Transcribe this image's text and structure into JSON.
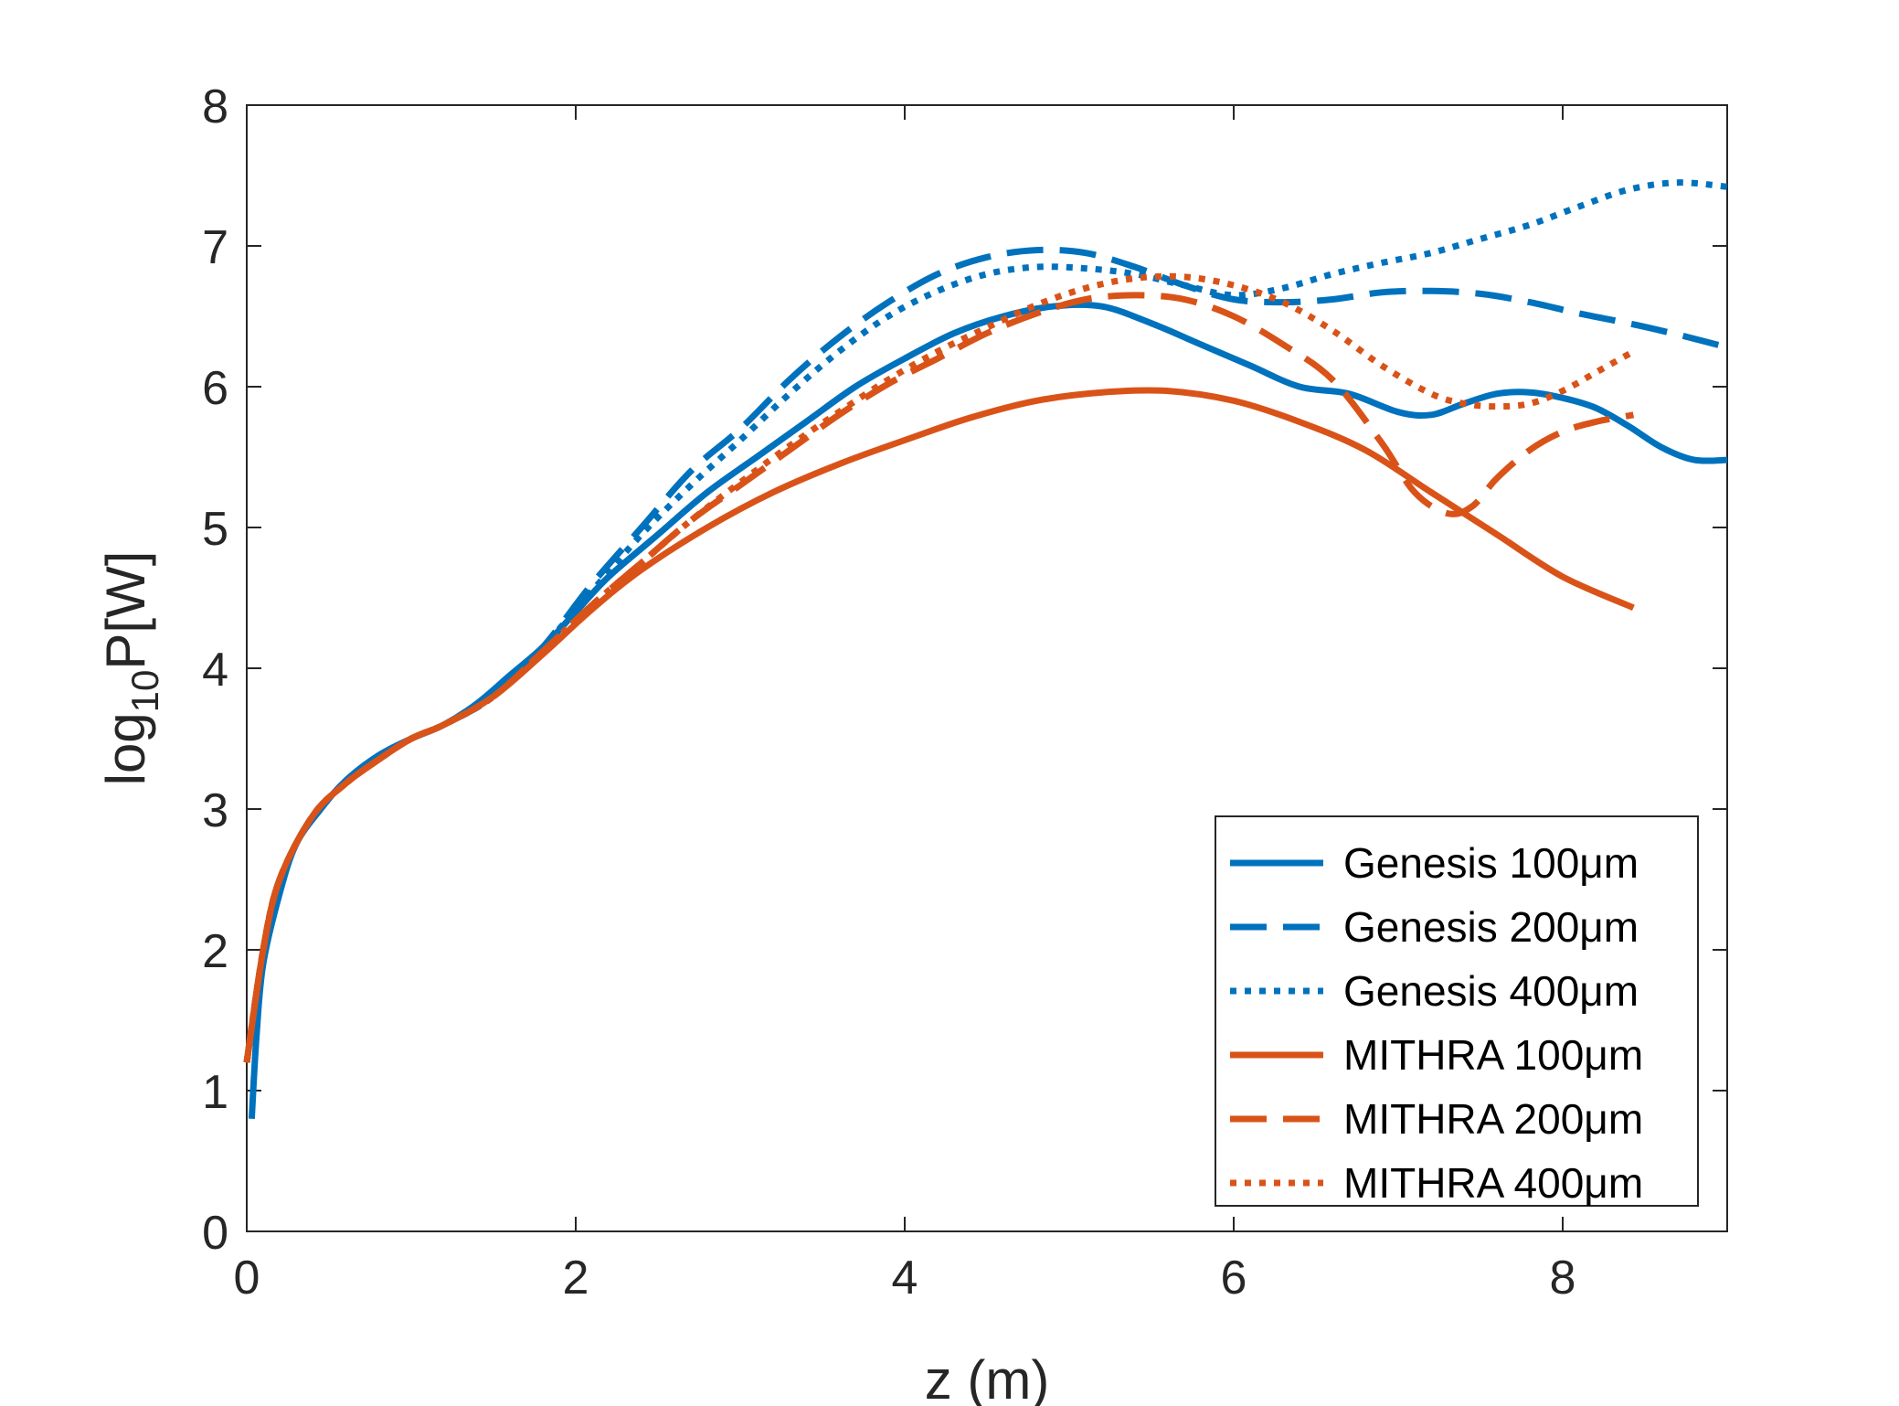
{
  "chart_data": {
    "type": "line",
    "title": "",
    "xlabel": "z (m)",
    "ylabel_main": "log",
    "ylabel_sub": "10",
    "ylabel_rest": "P[W]",
    "xlim": [
      0,
      9
    ],
    "ylim": [
      0,
      8
    ],
    "xticks": [
      0,
      2,
      4,
      6,
      8
    ],
    "yticks": [
      0,
      1,
      2,
      3,
      4,
      5,
      6,
      7,
      8
    ],
    "grid": false,
    "legend_position": "bottom-right",
    "series": [
      {
        "name": "Genesis 100μm",
        "color": "#0072BD",
        "style": "solid",
        "x": [
          0.03,
          0.06,
          0.1,
          0.2,
          0.3,
          0.45,
          0.6,
          0.8,
          1.0,
          1.2,
          1.4,
          1.6,
          1.8,
          2.0,
          2.2,
          2.5,
          2.8,
          3.1,
          3.4,
          3.7,
          4.0,
          4.3,
          4.6,
          4.9,
          5.2,
          5.5,
          5.8,
          6.1,
          6.4,
          6.7,
          7.0,
          7.2,
          7.4,
          7.6,
          7.8,
          8.0,
          8.2,
          8.4,
          8.6,
          8.8,
          9.0
        ],
        "y": [
          0.8,
          1.4,
          1.9,
          2.4,
          2.75,
          3.0,
          3.2,
          3.38,
          3.5,
          3.6,
          3.75,
          3.95,
          4.15,
          4.4,
          4.65,
          4.95,
          5.25,
          5.5,
          5.75,
          6.0,
          6.2,
          6.38,
          6.5,
          6.57,
          6.57,
          6.45,
          6.3,
          6.15,
          6.0,
          5.95,
          5.82,
          5.8,
          5.88,
          5.95,
          5.96,
          5.92,
          5.85,
          5.72,
          5.57,
          5.48,
          5.48
        ]
      },
      {
        "name": "Genesis 200μm",
        "color": "#0072BD",
        "style": "dashed",
        "x": [
          0.0,
          0.1,
          0.2,
          0.4,
          0.6,
          0.8,
          1.0,
          1.2,
          1.5,
          1.8,
          2.1,
          2.4,
          2.7,
          3.0,
          3.3,
          3.6,
          3.9,
          4.2,
          4.5,
          4.8,
          5.1,
          5.4,
          5.7,
          6.0,
          6.3,
          6.6,
          6.9,
          7.2,
          7.5,
          7.8,
          8.1,
          8.4,
          8.7,
          9.0
        ],
        "y": [
          1.2,
          2.0,
          2.5,
          2.95,
          3.18,
          3.35,
          3.5,
          3.6,
          3.8,
          4.15,
          4.6,
          5.0,
          5.4,
          5.7,
          6.05,
          6.35,
          6.6,
          6.8,
          6.92,
          6.97,
          6.95,
          6.85,
          6.72,
          6.62,
          6.6,
          6.62,
          6.67,
          6.68,
          6.66,
          6.6,
          6.52,
          6.45,
          6.37,
          6.28
        ]
      },
      {
        "name": "Genesis 400μm",
        "color": "#0072BD",
        "style": "dotted",
        "x": [
          0.0,
          0.1,
          0.2,
          0.4,
          0.6,
          0.8,
          1.0,
          1.2,
          1.5,
          1.8,
          2.1,
          2.4,
          2.7,
          3.0,
          3.3,
          3.6,
          3.9,
          4.2,
          4.5,
          4.8,
          5.1,
          5.4,
          5.7,
          6.0,
          6.3,
          6.6,
          6.9,
          7.2,
          7.5,
          7.8,
          8.1,
          8.4,
          8.7,
          9.0
        ],
        "y": [
          1.2,
          2.0,
          2.5,
          2.95,
          3.18,
          3.35,
          3.5,
          3.6,
          3.8,
          4.15,
          4.55,
          4.95,
          5.3,
          5.62,
          5.95,
          6.25,
          6.5,
          6.68,
          6.8,
          6.85,
          6.84,
          6.8,
          6.72,
          6.65,
          6.7,
          6.8,
          6.88,
          6.95,
          7.05,
          7.15,
          7.28,
          7.4,
          7.45,
          7.42
        ]
      },
      {
        "name": "MITHRA 100μm",
        "color": "#D95319",
        "style": "solid",
        "x": [
          0.0,
          0.1,
          0.2,
          0.4,
          0.6,
          0.8,
          1.0,
          1.2,
          1.5,
          1.8,
          2.1,
          2.4,
          2.8,
          3.2,
          3.6,
          4.0,
          4.4,
          4.8,
          5.2,
          5.6,
          6.0,
          6.4,
          6.8,
          7.2,
          7.6,
          8.0,
          8.43
        ],
        "y": [
          1.2,
          2.0,
          2.5,
          2.95,
          3.18,
          3.35,
          3.5,
          3.6,
          3.8,
          4.1,
          4.42,
          4.7,
          5.0,
          5.25,
          5.45,
          5.62,
          5.78,
          5.9,
          5.96,
          5.97,
          5.9,
          5.75,
          5.55,
          5.25,
          4.95,
          4.65,
          4.43
        ]
      },
      {
        "name": "MITHRA 200μm",
        "color": "#D95319",
        "style": "dashed",
        "x": [
          0.0,
          0.1,
          0.2,
          0.4,
          0.6,
          0.8,
          1.0,
          1.2,
          1.5,
          1.8,
          2.1,
          2.4,
          2.7,
          3.0,
          3.3,
          3.6,
          3.9,
          4.2,
          4.5,
          4.8,
          5.1,
          5.4,
          5.7,
          6.0,
          6.3,
          6.6,
          6.9,
          7.1,
          7.3,
          7.45,
          7.6,
          7.8,
          8.0,
          8.2,
          8.43
        ],
        "y": [
          1.2,
          2.0,
          2.5,
          2.95,
          3.18,
          3.35,
          3.5,
          3.6,
          3.8,
          4.12,
          4.45,
          4.75,
          5.05,
          5.3,
          5.55,
          5.8,
          6.02,
          6.2,
          6.38,
          6.52,
          6.62,
          6.65,
          6.62,
          6.5,
          6.3,
          6.05,
          5.6,
          5.25,
          5.1,
          5.15,
          5.35,
          5.55,
          5.68,
          5.75,
          5.8
        ]
      },
      {
        "name": "MITHRA 400μm",
        "color": "#D95319",
        "style": "dotted",
        "x": [
          0.0,
          0.1,
          0.2,
          0.4,
          0.6,
          0.8,
          1.0,
          1.2,
          1.5,
          1.8,
          2.1,
          2.4,
          2.7,
          3.0,
          3.3,
          3.6,
          3.9,
          4.2,
          4.5,
          4.8,
          5.1,
          5.4,
          5.7,
          6.0,
          6.3,
          6.6,
          6.9,
          7.2,
          7.4,
          7.6,
          7.8,
          8.0,
          8.2,
          8.43
        ],
        "y": [
          1.2,
          2.0,
          2.5,
          2.95,
          3.18,
          3.35,
          3.5,
          3.6,
          3.8,
          4.12,
          4.45,
          4.75,
          5.05,
          5.32,
          5.58,
          5.82,
          6.05,
          6.25,
          6.42,
          6.58,
          6.7,
          6.77,
          6.78,
          6.72,
          6.6,
          6.4,
          6.15,
          5.95,
          5.88,
          5.86,
          5.88,
          5.97,
          6.1,
          6.25
        ]
      }
    ]
  }
}
